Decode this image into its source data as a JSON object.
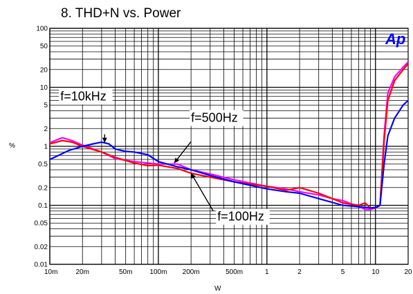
{
  "chart_data": {
    "type": "line",
    "title": "8. THD+N vs. Power",
    "xlabel": "W",
    "ylabel": "%",
    "xscale": "log",
    "yscale": "log",
    "xlim": [
      0.01,
      20
    ],
    "ylim": [
      0.01,
      100
    ],
    "grid": true,
    "logo": "Ap",
    "x_ticks": [
      {
        "value": 0.01,
        "label": "10m"
      },
      {
        "value": 0.02,
        "label": "20m"
      },
      {
        "value": 0.05,
        "label": "50m"
      },
      {
        "value": 0.1,
        "label": "100m"
      },
      {
        "value": 0.2,
        "label": "200m"
      },
      {
        "value": 0.5,
        "label": "500m"
      },
      {
        "value": 1,
        "label": "1"
      },
      {
        "value": 2,
        "label": "2"
      },
      {
        "value": 5,
        "label": "5"
      },
      {
        "value": 10,
        "label": "10"
      },
      {
        "value": 20,
        "label": "20"
      }
    ],
    "y_ticks": [
      {
        "value": 100,
        "label": "100"
      },
      {
        "value": 50,
        "label": "50"
      },
      {
        "value": 20,
        "label": "20"
      },
      {
        "value": 10,
        "label": "10"
      },
      {
        "value": 5,
        "label": "5"
      },
      {
        "value": 2,
        "label": "2"
      },
      {
        "value": 1,
        "label": "1"
      },
      {
        "value": 0.5,
        "label": "0.5"
      },
      {
        "value": 0.2,
        "label": "0.2"
      },
      {
        "value": 0.1,
        "label": "0.1"
      },
      {
        "value": 0.05,
        "label": "0.05"
      },
      {
        "value": 0.02,
        "label": "0.02"
      },
      {
        "value": 0.01,
        "label": "0.01"
      }
    ],
    "series": [
      {
        "color": "#ff00ff",
        "points": [
          [
            0.01,
            1.15
          ],
          [
            0.013,
            1.4
          ],
          [
            0.016,
            1.25
          ],
          [
            0.02,
            1.05
          ],
          [
            0.03,
            0.8
          ],
          [
            0.04,
            0.62
          ],
          [
            0.06,
            0.55
          ],
          [
            0.1,
            0.5
          ],
          [
            0.15,
            0.5
          ],
          [
            0.2,
            0.4
          ],
          [
            0.3,
            0.34
          ],
          [
            0.5,
            0.27
          ],
          [
            1,
            0.21
          ],
          [
            1.5,
            0.19
          ],
          [
            2,
            0.17
          ],
          [
            3,
            0.15
          ],
          [
            4,
            0.13
          ],
          [
            5,
            0.12
          ],
          [
            7,
            0.095
          ],
          [
            8,
            0.085
          ],
          [
            9,
            0.085
          ],
          [
            10,
            0.09
          ],
          [
            11,
            0.1
          ],
          [
            12,
            1.5
          ],
          [
            13,
            8
          ],
          [
            15,
            15
          ],
          [
            18,
            22
          ],
          [
            20,
            27
          ]
        ]
      },
      {
        "color": "#ff0000",
        "points": [
          [
            0.01,
            1.1
          ],
          [
            0.013,
            1.25
          ],
          [
            0.016,
            1.18
          ],
          [
            0.02,
            1.0
          ],
          [
            0.03,
            0.8
          ],
          [
            0.04,
            0.65
          ],
          [
            0.06,
            0.52
          ],
          [
            0.08,
            0.47
          ],
          [
            0.1,
            0.48
          ],
          [
            0.15,
            0.42
          ],
          [
            0.2,
            0.35
          ],
          [
            0.3,
            0.3
          ],
          [
            0.5,
            0.25
          ],
          [
            1,
            0.21
          ],
          [
            1.5,
            0.18
          ],
          [
            2,
            0.2
          ],
          [
            3,
            0.16
          ],
          [
            4,
            0.13
          ],
          [
            5,
            0.11
          ],
          [
            7,
            0.1
          ],
          [
            8,
            0.11
          ],
          [
            9,
            0.09
          ],
          [
            10,
            0.09
          ],
          [
            11,
            0.1
          ],
          [
            12,
            1.2
          ],
          [
            13,
            6
          ],
          [
            15,
            13
          ],
          [
            18,
            20
          ],
          [
            20,
            25
          ]
        ]
      },
      {
        "color": "#0000ff",
        "points": [
          [
            0.01,
            0.6
          ],
          [
            0.012,
            0.7
          ],
          [
            0.015,
            0.85
          ],
          [
            0.02,
            1.0
          ],
          [
            0.025,
            1.1
          ],
          [
            0.03,
            1.18
          ],
          [
            0.035,
            1.1
          ],
          [
            0.04,
            0.9
          ],
          [
            0.05,
            0.82
          ],
          [
            0.06,
            0.8
          ],
          [
            0.08,
            0.72
          ],
          [
            0.1,
            0.55
          ],
          [
            0.15,
            0.45
          ],
          [
            0.2,
            0.4
          ],
          [
            0.3,
            0.32
          ],
          [
            0.5,
            0.25
          ],
          [
            1,
            0.19
          ],
          [
            1.5,
            0.17
          ],
          [
            2,
            0.16
          ],
          [
            3,
            0.13
          ],
          [
            5,
            0.1
          ],
          [
            7,
            0.095
          ],
          [
            9,
            0.09
          ],
          [
            10,
            0.092
          ],
          [
            11,
            0.1
          ],
          [
            12,
            0.5
          ],
          [
            13,
            1.5
          ],
          [
            15,
            3
          ],
          [
            18,
            5
          ],
          [
            20,
            6
          ]
        ]
      }
    ],
    "annotations": [
      {
        "text": "f=10kHz",
        "arrow_from": [
          0.032,
          1.6
        ],
        "arrow_to": [
          0.032,
          1.15
        ],
        "pos": [
          0.0125,
          6.0
        ]
      },
      {
        "text": "f=500Hz",
        "arrow_from": [
          0.2,
          1.2
        ],
        "arrow_to": [
          0.14,
          0.52
        ],
        "pos": [
          0.2,
          2.6
        ]
      },
      {
        "text": "f=100Hz",
        "arrow_from": [
          0.32,
          0.08
        ],
        "arrow_to": [
          0.2,
          0.35
        ],
        "pos": [
          0.35,
          0.055
        ]
      }
    ]
  }
}
